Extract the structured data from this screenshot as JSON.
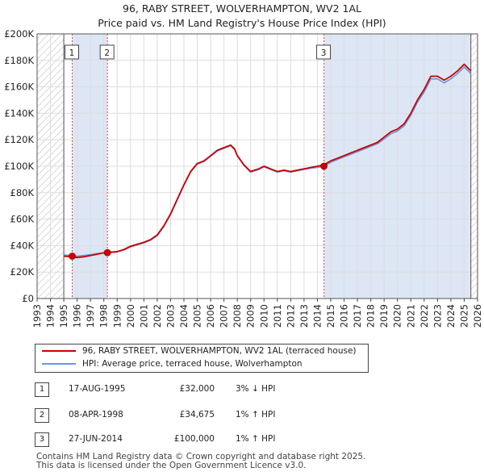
{
  "title_line1": "96, RABY STREET, WOLVERHAMPTON, WV2 1AL",
  "title_line2": "Price paid vs. HM Land Registry's House Price Index (HPI)",
  "colors": {
    "property": "#cc0000",
    "hpi": "#6699dd",
    "shade": "#dde6f5",
    "hatch": "#c8c8c8",
    "grid": "#dddddd",
    "marker_line": "#dd4444"
  },
  "chart_data": {
    "type": "line",
    "title": "Price paid vs. HM Land Registry's House Price Index (HPI)",
    "xlabel": "",
    "ylabel": "",
    "xlim": [
      1993,
      2026
    ],
    "ylim": [
      0,
      200000
    ],
    "y_ticks": [
      0,
      20000,
      40000,
      60000,
      80000,
      100000,
      120000,
      140000,
      160000,
      180000,
      200000
    ],
    "y_tick_labels": [
      "£0",
      "£20K",
      "£40K",
      "£60K",
      "£80K",
      "£100K",
      "£120K",
      "£140K",
      "£160K",
      "£180K",
      "£200K"
    ],
    "x_tick_labels": [
      "1993",
      "1994",
      "1995",
      "1996",
      "1997",
      "1998",
      "1999",
      "2000",
      "2001",
      "2002",
      "2003",
      "2004",
      "2005",
      "2006",
      "2007",
      "2008",
      "2009",
      "2010",
      "2011",
      "2012",
      "2013",
      "2014",
      "2015",
      "2016",
      "2017",
      "2018",
      "2019",
      "2020",
      "2021",
      "2022",
      "2023",
      "2024",
      "2025",
      "2026"
    ],
    "data_start": 1995.0,
    "data_end": 2025.5,
    "series": [
      {
        "name": "96, RABY STREET, WOLVERHAMPTON, WV2 1AL (terraced house)",
        "color": "#cc0000",
        "x": [
          1995.0,
          1995.6,
          1996.0,
          1996.5,
          1997.0,
          1997.5,
          1998.0,
          1998.3,
          1998.7,
          1999.0,
          1999.5,
          2000.0,
          2000.5,
          2001.0,
          2001.5,
          2002.0,
          2002.5,
          2003.0,
          2003.5,
          2004.0,
          2004.5,
          2005.0,
          2005.5,
          2006.0,
          2006.5,
          2007.0,
          2007.5,
          2007.8,
          2008.0,
          2008.5,
          2009.0,
          2009.3,
          2009.6,
          2010.0,
          2010.5,
          2011.0,
          2011.5,
          2012.0,
          2012.5,
          2013.0,
          2013.5,
          2014.0,
          2014.5,
          2015.0,
          2015.5,
          2016.0,
          2016.5,
          2017.0,
          2017.5,
          2018.0,
          2018.5,
          2019.0,
          2019.5,
          2020.0,
          2020.5,
          2021.0,
          2021.5,
          2022.0,
          2022.5,
          2023.0,
          2023.5,
          2024.0,
          2024.5,
          2025.0,
          2025.5
        ],
        "values": [
          32000,
          31500,
          31000,
          31500,
          32500,
          33500,
          34600,
          35000,
          35200,
          35500,
          37000,
          39500,
          41000,
          42500,
          44500,
          48000,
          55000,
          64000,
          75000,
          86000,
          96000,
          102000,
          104000,
          108000,
          112000,
          114000,
          116000,
          113000,
          108000,
          101000,
          96000,
          97000,
          98000,
          100000,
          98000,
          96000,
          97000,
          96000,
          97000,
          98000,
          99000,
          100000,
          101000,
          104000,
          106000,
          108000,
          110000,
          112000,
          114000,
          116000,
          118000,
          122000,
          126000,
          128000,
          132000,
          140000,
          150000,
          158000,
          168000,
          168000,
          165000,
          168000,
          172000,
          177000,
          172000
        ]
      },
      {
        "name": "HPI: Average price, terraced house, Wolverhampton",
        "color": "#6699dd",
        "x": [
          1995.0,
          1995.6,
          1996.0,
          1996.5,
          1997.0,
          1997.5,
          1998.0,
          1998.3,
          1998.7,
          1999.0,
          1999.5,
          2000.0,
          2000.5,
          2001.0,
          2001.5,
          2002.0,
          2002.5,
          2003.0,
          2003.5,
          2004.0,
          2004.5,
          2005.0,
          2005.5,
          2006.0,
          2006.5,
          2007.0,
          2007.5,
          2007.8,
          2008.0,
          2008.5,
          2009.0,
          2009.3,
          2009.6,
          2010.0,
          2010.5,
          2011.0,
          2011.5,
          2012.0,
          2012.5,
          2013.0,
          2013.5,
          2014.0,
          2014.5,
          2015.0,
          2015.5,
          2016.0,
          2016.5,
          2017.0,
          2017.5,
          2018.0,
          2018.5,
          2019.0,
          2019.5,
          2020.0,
          2020.5,
          2021.0,
          2021.5,
          2022.0,
          2022.5,
          2023.0,
          2023.5,
          2024.0,
          2024.5,
          2025.0,
          2025.5
        ],
        "values": [
          33000,
          32500,
          32000,
          32500,
          33200,
          34000,
          34300,
          34600,
          34900,
          35200,
          36600,
          39000,
          40500,
          42000,
          44000,
          47500,
          54500,
          63500,
          74500,
          85500,
          95500,
          101500,
          103500,
          107500,
          111500,
          113500,
          115500,
          112500,
          107500,
          100500,
          95500,
          96500,
          97500,
          99500,
          97500,
          95500,
          96500,
          95500,
          96500,
          97500,
          98500,
          99000,
          100000,
          103000,
          105000,
          107000,
          109000,
          111000,
          113000,
          115000,
          117000,
          120500,
          124500,
          126500,
          130500,
          138500,
          148500,
          156000,
          166000,
          166000,
          163000,
          166000,
          170000,
          175000,
          170000
        ]
      }
    ],
    "transactions": [
      {
        "id": "1",
        "x": 1995.63,
        "price": 32000,
        "date": "17-AUG-1995",
        "price_label": "£32,000",
        "hpi_label": "3% ↓ HPI"
      },
      {
        "id": "2",
        "x": 1998.27,
        "price": 34675,
        "date": "08-APR-1998",
        "price_label": "£34,675",
        "hpi_label": "1% ↑ HPI"
      },
      {
        "id": "3",
        "x": 2014.49,
        "price": 100000,
        "date": "27-JUN-2014",
        "price_label": "£100,000",
        "hpi_label": "1% ↑ HPI"
      }
    ]
  },
  "legend": {
    "property_label": "96, RABY STREET, WOLVERHAMPTON, WV2 1AL (terraced house)",
    "hpi_label": "HPI: Average price, terraced house, Wolverhampton"
  },
  "footer": {
    "line1": "Contains HM Land Registry data © Crown copyright and database right 2025.",
    "line2": "This data is licensed under the Open Government Licence v3.0."
  }
}
